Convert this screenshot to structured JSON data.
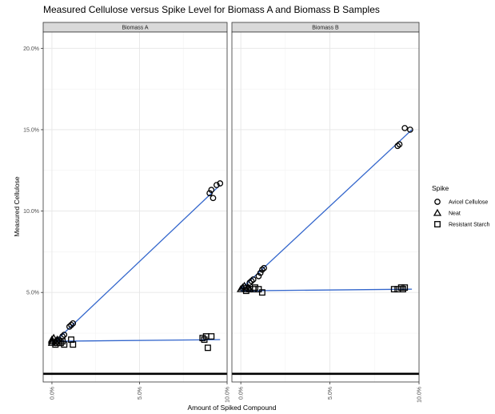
{
  "chart_data": {
    "type": "scatter",
    "title": "Measured Cellulose versus Spike Level for Biomass A and Biomass B Samples",
    "xlabel": "Amount of Spiked Compound",
    "ylabel": "Measured Cellulose",
    "xlim": [
      -0.005,
      0.1
    ],
    "ylim": [
      -0.005,
      0.21
    ],
    "x_ticks": [
      0.0,
      0.05,
      0.1
    ],
    "x_tick_labels": [
      "0.0%",
      "5.0%",
      "10.0%"
    ],
    "y_ticks": [
      0.05,
      0.1,
      0.15,
      0.2
    ],
    "y_tick_labels": [
      "5.0%",
      "10.0%",
      "15.0%",
      "20.0%"
    ],
    "grid": true,
    "legend_position": "right",
    "legend_title": "Spike",
    "legend": [
      {
        "label": "Avicel Cellulose",
        "shape": "circle"
      },
      {
        "label": "Neat",
        "shape": "triangle"
      },
      {
        "label": "Resistant Starch",
        "shape": "square"
      }
    ],
    "fit_line_color": "#3366cc",
    "zero_line_color": "#000000",
    "panels": [
      {
        "label": "Biomass A",
        "series": [
          {
            "name": "Avicel Cellulose",
            "shape": "circle",
            "points": [
              [
                0.002,
                0.019
              ],
              [
                0.003,
                0.02
              ],
              [
                0.004,
                0.021
              ],
              [
                0.006,
                0.023
              ],
              [
                0.007,
                0.024
              ],
              [
                0.01,
                0.029
              ],
              [
                0.011,
                0.03
              ],
              [
                0.012,
                0.031
              ],
              [
                0.09,
                0.111
              ],
              [
                0.091,
                0.113
              ],
              [
                0.092,
                0.108
              ],
              [
                0.094,
                0.116
              ],
              [
                0.096,
                0.117
              ]
            ]
          },
          {
            "name": "Neat",
            "shape": "triangle",
            "points": [
              [
                0.0,
                0.02
              ],
              [
                0.0,
                0.021
              ],
              [
                0.0,
                0.019
              ],
              [
                0.001,
                0.022
              ],
              [
                0.002,
                0.02
              ],
              [
                0.003,
                0.021
              ]
            ]
          },
          {
            "name": "Resistant Starch",
            "shape": "square",
            "points": [
              [
                0.002,
                0.018
              ],
              [
                0.003,
                0.019
              ],
              [
                0.004,
                0.02
              ],
              [
                0.005,
                0.019
              ],
              [
                0.006,
                0.02
              ],
              [
                0.007,
                0.018
              ],
              [
                0.011,
                0.021
              ],
              [
                0.012,
                0.018
              ],
              [
                0.086,
                0.022
              ],
              [
                0.087,
                0.021
              ],
              [
                0.088,
                0.023
              ],
              [
                0.089,
                0.016
              ],
              [
                0.091,
                0.023
              ]
            ]
          }
        ],
        "fits": [
          {
            "name": "Avicel Cellulose",
            "x": [
              0.0,
              0.096
            ],
            "y": [
              0.018,
              0.116
            ]
          },
          {
            "name": "Resistant Starch",
            "x": [
              0.0,
              0.096
            ],
            "y": [
              0.02,
              0.021
            ]
          }
        ]
      },
      {
        "label": "Biomass B",
        "series": [
          {
            "name": "Avicel Cellulose",
            "shape": "circle",
            "points": [
              [
                0.003,
                0.053
              ],
              [
                0.005,
                0.056
              ],
              [
                0.006,
                0.057
              ],
              [
                0.007,
                0.058
              ],
              [
                0.01,
                0.06
              ],
              [
                0.011,
                0.062
              ],
              [
                0.012,
                0.064
              ],
              [
                0.013,
                0.065
              ],
              [
                0.088,
                0.14
              ],
              [
                0.089,
                0.141
              ],
              [
                0.092,
                0.151
              ],
              [
                0.095,
                0.15
              ]
            ]
          },
          {
            "name": "Neat",
            "shape": "triangle",
            "points": [
              [
                0.0,
                0.052
              ],
              [
                0.001,
                0.053
              ],
              [
                0.002,
                0.054
              ],
              [
                0.003,
                0.052
              ],
              [
                0.004,
                0.053
              ],
              [
                0.005,
                0.052
              ]
            ]
          },
          {
            "name": "Resistant Starch",
            "shape": "square",
            "points": [
              [
                0.003,
                0.051
              ],
              [
                0.005,
                0.052
              ],
              [
                0.007,
                0.052
              ],
              [
                0.008,
                0.053
              ],
              [
                0.01,
                0.052
              ],
              [
                0.012,
                0.05
              ],
              [
                0.086,
                0.052
              ],
              [
                0.088,
                0.052
              ],
              [
                0.09,
                0.053
              ],
              [
                0.091,
                0.052
              ],
              [
                0.092,
                0.053
              ]
            ]
          }
        ],
        "fits": [
          {
            "name": "Avicel Cellulose",
            "x": [
              0.0,
              0.096
            ],
            "y": [
              0.052,
              0.15
            ]
          },
          {
            "name": "Resistant Starch",
            "x": [
              0.0,
              0.096
            ],
            "y": [
              0.051,
              0.052
            ]
          }
        ]
      }
    ]
  }
}
